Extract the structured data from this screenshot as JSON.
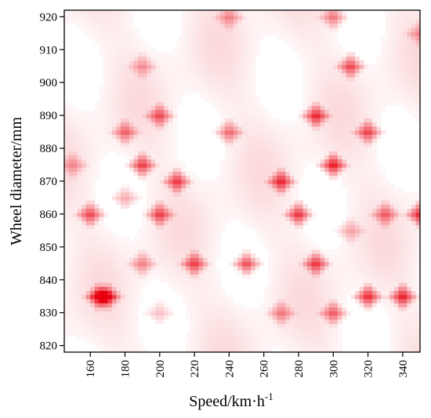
{
  "chart_data": {
    "type": "heatmap",
    "title": "",
    "xlabel": "Speed/km·h",
    "xlabel_superscript": "-1",
    "ylabel": "Wheel diameter/mm",
    "xlim": [
      145,
      350
    ],
    "ylim": [
      818,
      922
    ],
    "x_ticks": [
      160,
      180,
      200,
      220,
      240,
      260,
      280,
      300,
      320,
      340
    ],
    "y_ticks": [
      820,
      830,
      840,
      850,
      860,
      870,
      880,
      890,
      900,
      910,
      920
    ],
    "grid": false,
    "colorscale": {
      "low": "#ffffff",
      "high": "#e8000e"
    },
    "hotspots": [
      {
        "x": 165,
        "y": 835,
        "v": 0.95
      },
      {
        "x": 170,
        "y": 835,
        "v": 0.85
      },
      {
        "x": 160,
        "y": 860,
        "v": 0.75
      },
      {
        "x": 190,
        "y": 875,
        "v": 0.8
      },
      {
        "x": 180,
        "y": 885,
        "v": 0.6
      },
      {
        "x": 200,
        "y": 890,
        "v": 0.7
      },
      {
        "x": 200,
        "y": 860,
        "v": 0.75
      },
      {
        "x": 210,
        "y": 870,
        "v": 0.8
      },
      {
        "x": 190,
        "y": 845,
        "v": 0.5
      },
      {
        "x": 220,
        "y": 845,
        "v": 0.75
      },
      {
        "x": 250,
        "y": 845,
        "v": 0.8
      },
      {
        "x": 240,
        "y": 885,
        "v": 0.6
      },
      {
        "x": 270,
        "y": 870,
        "v": 0.85
      },
      {
        "x": 280,
        "y": 860,
        "v": 0.85
      },
      {
        "x": 270,
        "y": 830,
        "v": 0.5
      },
      {
        "x": 290,
        "y": 890,
        "v": 0.85
      },
      {
        "x": 300,
        "y": 875,
        "v": 0.95
      },
      {
        "x": 290,
        "y": 845,
        "v": 0.8
      },
      {
        "x": 300,
        "y": 830,
        "v": 0.65
      },
      {
        "x": 310,
        "y": 905,
        "v": 0.75
      },
      {
        "x": 320,
        "y": 885,
        "v": 0.75
      },
      {
        "x": 320,
        "y": 835,
        "v": 0.9
      },
      {
        "x": 330,
        "y": 860,
        "v": 0.6
      },
      {
        "x": 340,
        "y": 835,
        "v": 0.9
      },
      {
        "x": 350,
        "y": 860,
        "v": 0.9
      },
      {
        "x": 190,
        "y": 905,
        "v": 0.4
      },
      {
        "x": 150,
        "y": 875,
        "v": 0.4
      },
      {
        "x": 240,
        "y": 920,
        "v": 0.45
      },
      {
        "x": 300,
        "y": 920,
        "v": 0.55
      },
      {
        "x": 350,
        "y": 915,
        "v": 0.4
      },
      {
        "x": 180,
        "y": 865,
        "v": 0.4
      },
      {
        "x": 310,
        "y": 855,
        "v": 0.35
      },
      {
        "x": 200,
        "y": 830,
        "v": 0.3
      }
    ]
  }
}
